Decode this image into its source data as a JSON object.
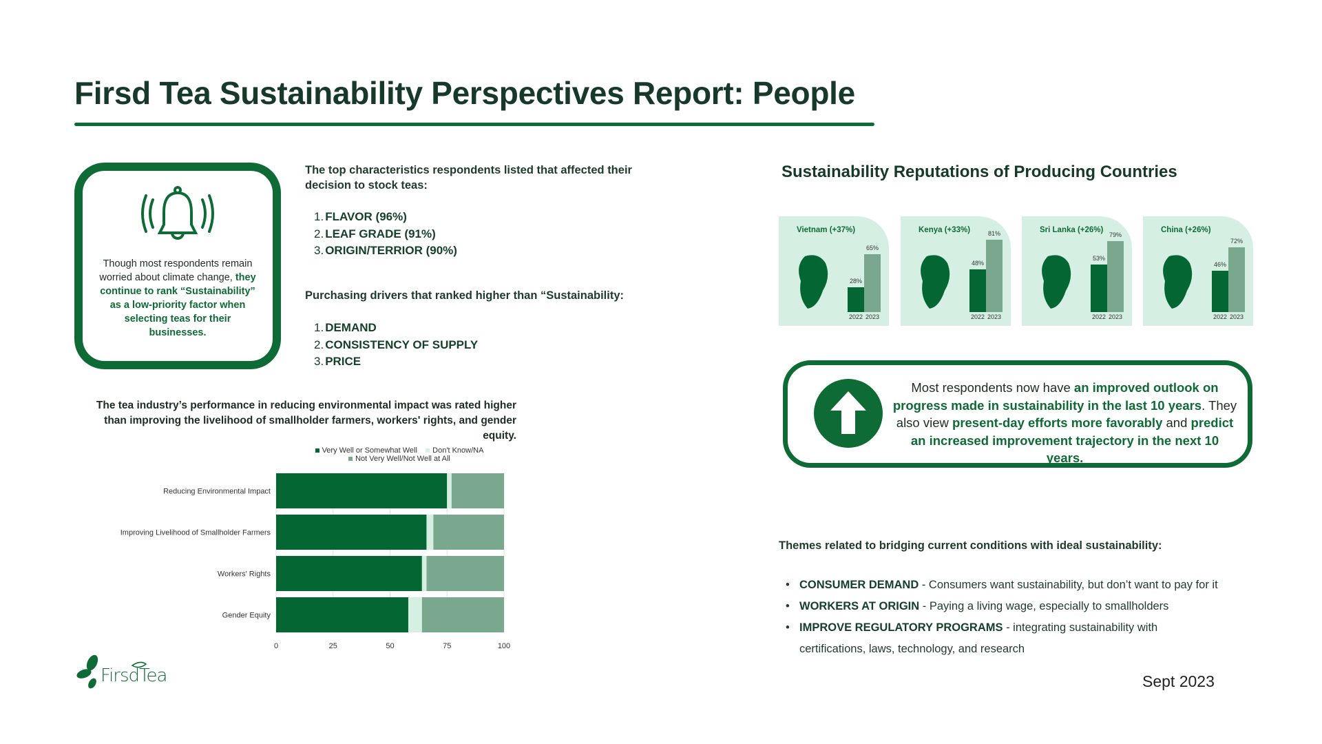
{
  "title": "Firsd Tea Sustainability Perspectives Report: People",
  "callout": {
    "icon": "bell-ringing-icon",
    "text_plain": "Though most respondents remain worried about climate change, ",
    "text_green": "they continue to rank “Sustainability” as a low-priority factor when selecting teas for their businesses."
  },
  "characteristics": {
    "intro": "The top characteristics respondents listed that affected their decision to stock teas:",
    "items": [
      "FLAVOR (96%)",
      "LEAF GRADE (91%)",
      "ORIGIN/TERRIOR (90%)"
    ]
  },
  "drivers": {
    "intro": "Purchasing drivers that ranked higher than “Sustainability:",
    "items": [
      "DEMAND",
      "CONSISTENCY OF SUPPLY",
      "PRICE"
    ]
  },
  "chart_caption": "The tea industry’s performance in reducing environmental impact was rated higher than improving the livelihood of smallholder farmers, workers' rights, and gender equity.",
  "chart_data": {
    "type": "bar",
    "orientation": "horizontal",
    "stacked": true,
    "categories": [
      "Reducing Environmental Impact",
      "Improving Livelihood of Smallholder Farmers",
      "Workers' Rights",
      "Gender Equity"
    ],
    "series": [
      {
        "name": "Very Well or Somewhat Well",
        "color": "#046632",
        "values": [
          75,
          66,
          64,
          58
        ]
      },
      {
        "name": "Don't Know/NA",
        "color": "#d5f0e3",
        "values": [
          2,
          3,
          2,
          6
        ]
      },
      {
        "name": "Not Very Well/Not Well at All",
        "color": "#7aa88e",
        "values": [
          23,
          31,
          34,
          36
        ]
      }
    ],
    "xlim": [
      0,
      100
    ],
    "xticks": [
      "0",
      "25",
      "50",
      "75",
      "100"
    ],
    "grid": true,
    "legend": "top"
  },
  "countries": {
    "title": "Sustainability Reputations of Producing Countries",
    "years": [
      "2022",
      "2023"
    ],
    "items": [
      {
        "name": "Vietnam (+37%)",
        "v2022": 28,
        "v2023": 65,
        "l2022": "28%",
        "l2023": "65%"
      },
      {
        "name": "Kenya (+33%)",
        "v2022": 48,
        "v2023": 81,
        "l2022": "48%",
        "l2023": "81%"
      },
      {
        "name": "Sri Lanka (+26%)",
        "v2022": 53,
        "v2023": 79,
        "l2022": "53%",
        "l2023": "79%"
      },
      {
        "name": "China (+26%)",
        "v2022": 46,
        "v2023": 72,
        "l2022": "46%",
        "l2023": "72%"
      }
    ]
  },
  "outlook": {
    "icon": "arrow-up-icon",
    "t1": "Most respondents now have ",
    "g1": "an improved outlook on progress made in sustainability in the last 10 years",
    "t2": ". They also view ",
    "g2": "present-day efforts more favorably",
    "t3": " and ",
    "g3": "predict an increased improvement trajectory in the next 10 years",
    "t4": "."
  },
  "themes": {
    "intro": "Themes related to bridging current conditions with ideal sustainability:",
    "items": [
      {
        "head": "CONSUMER DEMAND",
        "body": " - Consumers want sustainability, but don’t want to pay for it"
      },
      {
        "head": "WORKERS AT ORIGIN",
        "body": " - Paying a living wage, especially to smallholders"
      },
      {
        "head": "IMPROVE REGULATORY PROGRAMS",
        "body": " - integrating sustainability with certifications, laws, technology, and research"
      }
    ]
  },
  "logo_text": "FirsdTea",
  "date": "Sept 2023",
  "colors": {
    "dark_green": "#0f6b35",
    "mid_green": "#7aa88e",
    "light_green": "#d5f0e3"
  }
}
